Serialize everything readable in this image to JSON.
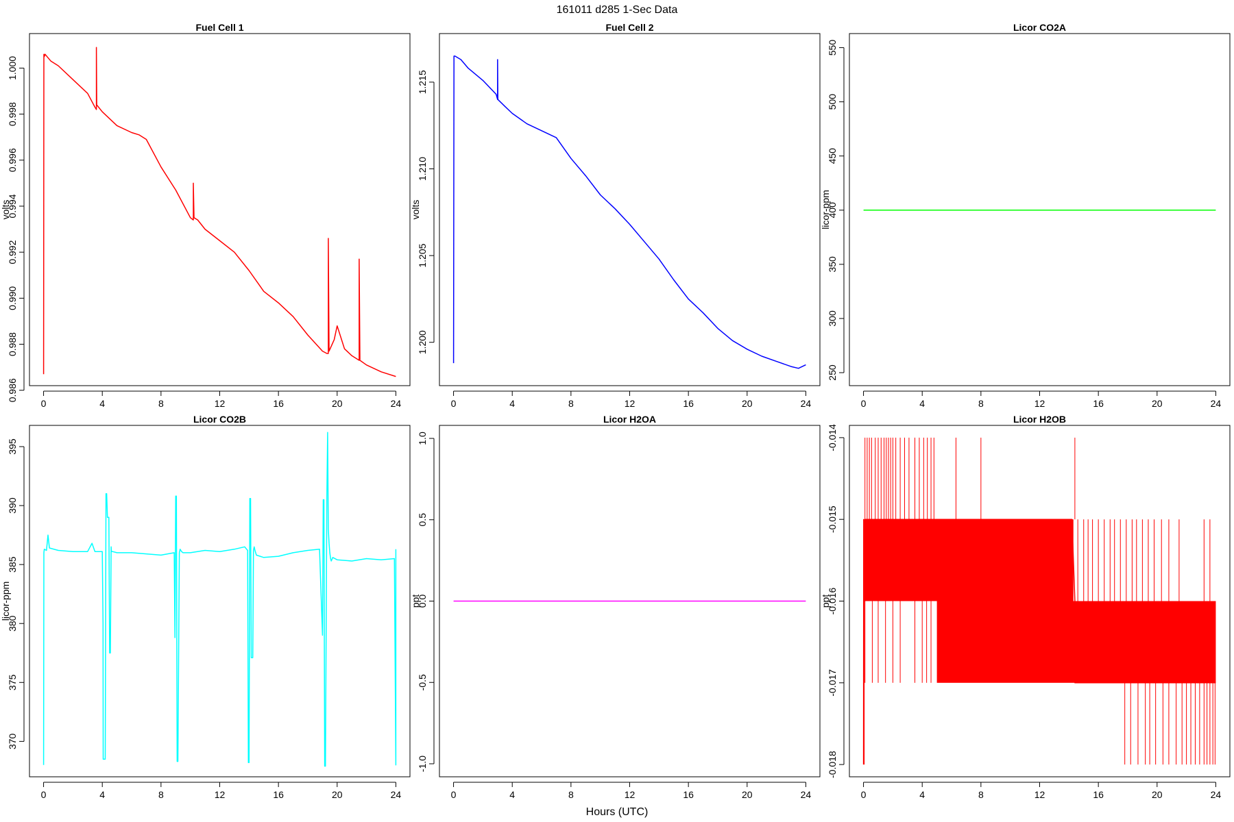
{
  "figure": {
    "title": "161011   d285   1-Sec Data",
    "xlabel": "Hours (UTC)"
  },
  "chart_data": [
    {
      "type": "line",
      "title": "Fuel Cell 1",
      "ylabel": "volts",
      "xlim": [
        -0.96,
        24.96
      ],
      "ylim": [
        0.9862,
        1.0015
      ],
      "xticks": [
        0,
        4,
        8,
        12,
        16,
        20,
        24
      ],
      "yticks": [
        0.986,
        0.988,
        0.99,
        0.992,
        0.994,
        0.996,
        0.998,
        1.0
      ],
      "ytick_labels": [
        "0.986",
        "0.988",
        "0.990",
        "0.992",
        "0.994",
        "0.996",
        "0.998",
        "1.000"
      ],
      "color": "#ff0000",
      "grid": false,
      "legend": "none",
      "series": [
        {
          "x": [
            0,
            0.02,
            0.05,
            0.1,
            0.5,
            1,
            2,
            3,
            3.5,
            3.6,
            3.6,
            3.62,
            4,
            5,
            6,
            6.5,
            7,
            8,
            9,
            10,
            10.2,
            10.2,
            10.25,
            10.5,
            11,
            12,
            13,
            14,
            15,
            16,
            17,
            18,
            19,
            19.3,
            19.4,
            19.4,
            19.45,
            19.8,
            20,
            20.2,
            20.5,
            21,
            21.5,
            21.5,
            21.55,
            22,
            23,
            24
          ],
          "y": [
            0.9867,
            1.0006,
            1.0005,
            1.0006,
            1.0003,
            1.0001,
            0.9995,
            0.9989,
            0.9983,
            0.9982,
            1.0009,
            0.9984,
            0.9981,
            0.9975,
            0.9972,
            0.9971,
            0.9969,
            0.9957,
            0.9947,
            0.9935,
            0.9934,
            0.995,
            0.9935,
            0.9934,
            0.993,
            0.9925,
            0.992,
            0.9912,
            0.9903,
            0.9898,
            0.9892,
            0.9884,
            0.9877,
            0.9876,
            0.9876,
            0.9926,
            0.9877,
            0.9882,
            0.9888,
            0.9884,
            0.9878,
            0.9875,
            0.9873,
            0.9917,
            0.9873,
            0.9871,
            0.9868,
            0.9866
          ]
        }
      ]
    },
    {
      "type": "line",
      "title": "Fuel Cell 2",
      "ylabel": "volts",
      "xlim": [
        -0.96,
        24.96
      ],
      "ylim": [
        1.1975,
        1.2178
      ],
      "xticks": [
        0,
        4,
        8,
        12,
        16,
        20,
        24
      ],
      "yticks": [
        1.2,
        1.205,
        1.21,
        1.215
      ],
      "ytick_labels": [
        "1.200",
        "1.205",
        "1.210",
        "1.215"
      ],
      "color": "#0000ff",
      "grid": false,
      "legend": "none",
      "series": [
        {
          "x": [
            0,
            0.03,
            0.1,
            0.5,
            1,
            2,
            2.9,
            3,
            3,
            3.02,
            3.5,
            4,
            5,
            6,
            7,
            8,
            9,
            10,
            11,
            12,
            13,
            14,
            15,
            16,
            17,
            18,
            19,
            20,
            21,
            22,
            23,
            23.5,
            24
          ],
          "y": [
            1.1988,
            1.2165,
            1.2165,
            1.2163,
            1.2158,
            1.2151,
            1.2143,
            1.214,
            1.2163,
            1.214,
            1.2136,
            1.2132,
            1.2126,
            1.2122,
            1.2118,
            1.2106,
            1.2096,
            1.2085,
            1.2077,
            1.2068,
            1.2058,
            1.2048,
            1.2036,
            1.2025,
            1.2017,
            1.2008,
            1.2001,
            1.1996,
            1.1992,
            1.1989,
            1.1986,
            1.1985,
            1.1987
          ]
        }
      ]
    },
    {
      "type": "line",
      "title": "Licor CO2A",
      "ylabel": "licor-ppm",
      "xlim": [
        -0.96,
        24.96
      ],
      "ylim": [
        238,
        563
      ],
      "xticks": [
        0,
        4,
        8,
        12,
        16,
        20,
        24
      ],
      "yticks": [
        250,
        300,
        350,
        400,
        450,
        500,
        550
      ],
      "ytick_labels": [
        "250",
        "300",
        "350",
        "400",
        "450",
        "500",
        "550"
      ],
      "color": "#00ff00",
      "grid": false,
      "legend": "none",
      "series": [
        {
          "x": [
            0,
            24
          ],
          "y": [
            400,
            400
          ]
        }
      ]
    },
    {
      "type": "line",
      "title": "Licor CO2B",
      "ylabel": "licor-ppm",
      "xlim": [
        -0.96,
        24.96
      ],
      "ylim": [
        367,
        396.8
      ],
      "xticks": [
        0,
        4,
        8,
        12,
        16,
        20,
        24
      ],
      "yticks": [
        370,
        375,
        380,
        385,
        390,
        395
      ],
      "ytick_labels": [
        "370",
        "375",
        "380",
        "385",
        "390",
        "395"
      ],
      "color": "#00ffff",
      "grid": false,
      "legend": "none",
      "series": [
        {
          "x": [
            0,
            0.02,
            0.05,
            0.2,
            0.3,
            0.4,
            1,
            2,
            3,
            3.3,
            3.5,
            4,
            4.05,
            4.06,
            4.1,
            4.2,
            4.25,
            4.3,
            4.35,
            4.45,
            4.5,
            4.55,
            4.6,
            4.62,
            4.7,
            5,
            6,
            7,
            8,
            8.9,
            8.95,
            9.0,
            9.05,
            9.1,
            9.15,
            9.25,
            9.3,
            9.4,
            9.5,
            10,
            11,
            12,
            13,
            13.7,
            13.9,
            13.95,
            14.0,
            14.05,
            14.1,
            14.15,
            14.25,
            14.3,
            14.35,
            14.4,
            14.5,
            15,
            16,
            17,
            18,
            18.8,
            19.0,
            19.05,
            19.1,
            19.15,
            19.2,
            19.3,
            19.35,
            19.4,
            19.45,
            19.5,
            19.55,
            19.6,
            19.7,
            20,
            21,
            22,
            23,
            23.9,
            24,
            24
          ],
          "y": [
            368,
            386,
            386.3,
            386.2,
            387.5,
            386.4,
            386.2,
            386.1,
            386.1,
            386.8,
            386.1,
            386.1,
            380,
            368.5,
            368.5,
            368.5,
            391,
            391,
            389,
            389,
            377.5,
            377.5,
            386.5,
            386.1,
            386.1,
            386,
            386,
            385.9,
            385.8,
            386,
            378.8,
            390.8,
            390.8,
            368.3,
            368.3,
            386,
            386.3,
            386.1,
            386,
            386,
            386.2,
            386.1,
            386.3,
            386.5,
            386.2,
            368.2,
            368.2,
            390.6,
            390.6,
            377.1,
            377.1,
            386.2,
            386.5,
            386.2,
            385.8,
            385.6,
            385.7,
            386,
            386.2,
            386.3,
            379,
            390.5,
            390.5,
            367.9,
            367.9,
            390.8,
            396.2,
            388,
            386.8,
            386,
            385.5,
            385.3,
            385.6,
            385.4,
            385.3,
            385.5,
            385.4,
            385.5,
            368,
            386.3
          ]
        }
      ]
    },
    {
      "type": "line",
      "title": "Licor H2OA",
      "ylabel": "ppt",
      "xlim": [
        -0.96,
        24.96
      ],
      "ylim": [
        -1.08,
        1.08
      ],
      "xticks": [
        0,
        4,
        8,
        12,
        16,
        20,
        24
      ],
      "yticks": [
        -1.0,
        -0.5,
        0.0,
        0.5,
        1.0
      ],
      "ytick_labels": [
        "-1.0",
        "-0.5",
        "0.0",
        "0.5",
        "1.0"
      ],
      "color": "#ff00ff",
      "grid": false,
      "legend": "none",
      "series": [
        {
          "x": [
            0,
            24
          ],
          "y": [
            0,
            0
          ]
        }
      ]
    },
    {
      "type": "line",
      "title": "Licor H2OB",
      "ylabel": "ppt",
      "xlim": [
        -0.96,
        24.96
      ],
      "ylim": [
        -0.01815,
        -0.01385
      ],
      "xticks": [
        0,
        4,
        8,
        12,
        16,
        20,
        24
      ],
      "yticks": [
        -0.018,
        -0.017,
        -0.016,
        -0.015,
        -0.014
      ],
      "ytick_labels": [
        "-0.018",
        "-0.017",
        "-0.016",
        "-0.015",
        "-0.014"
      ],
      "color": "#ff0000",
      "grid": false,
      "legend": "none",
      "series": [
        {
          "x": [
            0,
            0.01,
            0.05,
            0.1,
            14.2,
            14.4,
            14.4,
            24
          ],
          "y": [
            -0.018,
            -0.015,
            -0.016,
            -0.015,
            -0.015,
            -0.016,
            -0.017,
            -0.017
          ]
        }
      ],
      "bands": [
        {
          "x0": 0.05,
          "x1": 14.3,
          "y0": -0.016,
          "y1": -0.015
        },
        {
          "x0": 5.0,
          "x1": 24,
          "y0": -0.017,
          "y1": -0.016
        }
      ],
      "spikes": [
        {
          "x": 0.05,
          "y0": -0.015,
          "y1": -0.018
        },
        {
          "x": 0.1,
          "y0": -0.015,
          "y1": -0.014
        },
        {
          "x": 0.25,
          "y0": -0.015,
          "y1": -0.014
        },
        {
          "x": 0.4,
          "y0": -0.015,
          "y1": -0.014
        },
        {
          "x": 0.55,
          "y0": -0.015,
          "y1": -0.014
        },
        {
          "x": 0.8,
          "y0": -0.015,
          "y1": -0.014
        },
        {
          "x": 1.0,
          "y0": -0.015,
          "y1": -0.014
        },
        {
          "x": 1.2,
          "y0": -0.015,
          "y1": -0.014
        },
        {
          "x": 1.4,
          "y0": -0.015,
          "y1": -0.014
        },
        {
          "x": 1.55,
          "y0": -0.015,
          "y1": -0.014
        },
        {
          "x": 1.7,
          "y0": -0.015,
          "y1": -0.014
        },
        {
          "x": 1.85,
          "y0": -0.015,
          "y1": -0.014
        },
        {
          "x": 2.0,
          "y0": -0.015,
          "y1": -0.014
        },
        {
          "x": 2.2,
          "y0": -0.015,
          "y1": -0.014
        },
        {
          "x": 2.5,
          "y0": -0.015,
          "y1": -0.014
        },
        {
          "x": 2.8,
          "y0": -0.015,
          "y1": -0.014
        },
        {
          "x": 3.1,
          "y0": -0.015,
          "y1": -0.014
        },
        {
          "x": 3.5,
          "y0": -0.015,
          "y1": -0.014
        },
        {
          "x": 3.8,
          "y0": -0.015,
          "y1": -0.014
        },
        {
          "x": 4.1,
          "y0": -0.015,
          "y1": -0.014
        },
        {
          "x": 4.35,
          "y0": -0.015,
          "y1": -0.014
        },
        {
          "x": 4.6,
          "y0": -0.015,
          "y1": -0.014
        },
        {
          "x": 4.8,
          "y0": -0.015,
          "y1": -0.014
        },
        {
          "x": 6.3,
          "y0": -0.015,
          "y1": -0.014
        },
        {
          "x": 8.0,
          "y0": -0.015,
          "y1": -0.014
        },
        {
          "x": 0.1,
          "y0": -0.016,
          "y1": -0.017
        },
        {
          "x": 0.6,
          "y0": -0.016,
          "y1": -0.017
        },
        {
          "x": 1.0,
          "y0": -0.016,
          "y1": -0.017
        },
        {
          "x": 1.5,
          "y0": -0.016,
          "y1": -0.017
        },
        {
          "x": 2.0,
          "y0": -0.016,
          "y1": -0.017
        },
        {
          "x": 2.5,
          "y0": -0.016,
          "y1": -0.017
        },
        {
          "x": 3.5,
          "y0": -0.016,
          "y1": -0.017
        },
        {
          "x": 4.0,
          "y0": -0.016,
          "y1": -0.017
        },
        {
          "x": 4.3,
          "y0": -0.016,
          "y1": -0.017
        },
        {
          "x": 4.6,
          "y0": -0.016,
          "y1": -0.017
        },
        {
          "x": 14.4,
          "y0": -0.015,
          "y1": -0.014
        },
        {
          "x": 14.6,
          "y0": -0.016,
          "y1": -0.015
        },
        {
          "x": 15.0,
          "y0": -0.016,
          "y1": -0.015
        },
        {
          "x": 15.3,
          "y0": -0.016,
          "y1": -0.015
        },
        {
          "x": 15.6,
          "y0": -0.016,
          "y1": -0.015
        },
        {
          "x": 16.0,
          "y0": -0.016,
          "y1": -0.015
        },
        {
          "x": 16.4,
          "y0": -0.016,
          "y1": -0.015
        },
        {
          "x": 16.8,
          "y0": -0.016,
          "y1": -0.015
        },
        {
          "x": 17.1,
          "y0": -0.016,
          "y1": -0.015
        },
        {
          "x": 17.5,
          "y0": -0.016,
          "y1": -0.015
        },
        {
          "x": 17.9,
          "y0": -0.016,
          "y1": -0.015
        },
        {
          "x": 18.3,
          "y0": -0.016,
          "y1": -0.015
        },
        {
          "x": 18.6,
          "y0": -0.016,
          "y1": -0.015
        },
        {
          "x": 19.0,
          "y0": -0.016,
          "y1": -0.015
        },
        {
          "x": 19.4,
          "y0": -0.016,
          "y1": -0.015
        },
        {
          "x": 19.8,
          "y0": -0.016,
          "y1": -0.015
        },
        {
          "x": 20.3,
          "y0": -0.016,
          "y1": -0.015
        },
        {
          "x": 20.8,
          "y0": -0.016,
          "y1": -0.015
        },
        {
          "x": 21.5,
          "y0": -0.016,
          "y1": -0.015
        },
        {
          "x": 23.2,
          "y0": -0.016,
          "y1": -0.015
        },
        {
          "x": 23.6,
          "y0": -0.016,
          "y1": -0.015
        },
        {
          "x": 17.8,
          "y0": -0.017,
          "y1": -0.018
        },
        {
          "x": 18.2,
          "y0": -0.017,
          "y1": -0.018
        },
        {
          "x": 18.7,
          "y0": -0.017,
          "y1": -0.018
        },
        {
          "x": 19.2,
          "y0": -0.017,
          "y1": -0.018
        },
        {
          "x": 19.5,
          "y0": -0.017,
          "y1": -0.018
        },
        {
          "x": 19.9,
          "y0": -0.017,
          "y1": -0.018
        },
        {
          "x": 20.4,
          "y0": -0.017,
          "y1": -0.018
        },
        {
          "x": 20.8,
          "y0": -0.017,
          "y1": -0.018
        },
        {
          "x": 21.3,
          "y0": -0.017,
          "y1": -0.018
        },
        {
          "x": 21.7,
          "y0": -0.017,
          "y1": -0.018
        },
        {
          "x": 22.0,
          "y0": -0.017,
          "y1": -0.018
        },
        {
          "x": 22.3,
          "y0": -0.017,
          "y1": -0.018
        },
        {
          "x": 22.6,
          "y0": -0.017,
          "y1": -0.018
        },
        {
          "x": 22.9,
          "y0": -0.017,
          "y1": -0.018
        },
        {
          "x": 23.2,
          "y0": -0.017,
          "y1": -0.018
        },
        {
          "x": 23.4,
          "y0": -0.017,
          "y1": -0.018
        },
        {
          "x": 23.6,
          "y0": -0.017,
          "y1": -0.018
        },
        {
          "x": 23.8,
          "y0": -0.017,
          "y1": -0.018
        },
        {
          "x": 23.95,
          "y0": -0.017,
          "y1": -0.018
        }
      ]
    }
  ]
}
